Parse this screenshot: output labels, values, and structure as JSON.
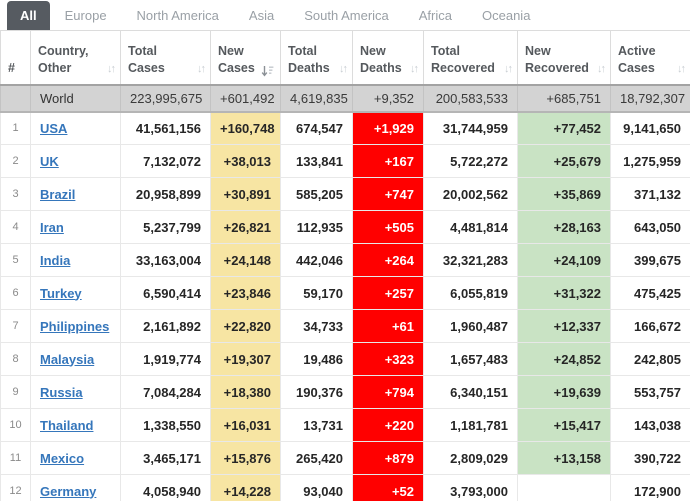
{
  "tabs": [
    {
      "label": "All",
      "active": true
    },
    {
      "label": "Europe",
      "active": false
    },
    {
      "label": "North America",
      "active": false
    },
    {
      "label": "Asia",
      "active": false
    },
    {
      "label": "South America",
      "active": false
    },
    {
      "label": "Africa",
      "active": false
    },
    {
      "label": "Oceania",
      "active": false
    }
  ],
  "colors": {
    "active_tab_bg": "#565b61",
    "new_cases_highlight": "#f7e5a3",
    "new_deaths_highlight": "#ff0000",
    "new_recovered_highlight": "#c9e3c4",
    "world_row_bg": "#d3d3d3",
    "country_link": "#3576bb"
  },
  "table": {
    "headers": [
      {
        "label": "#",
        "sortable": false
      },
      {
        "label": "Country, Other",
        "sortable": true
      },
      {
        "label": "Total Cases",
        "sortable": true
      },
      {
        "label": "New Cases",
        "sortable": true,
        "sorted": "desc"
      },
      {
        "label": "Total Deaths",
        "sortable": true
      },
      {
        "label": "New Deaths",
        "sortable": true
      },
      {
        "label": "Total Recovered",
        "sortable": true
      },
      {
        "label": "New Recovered",
        "sortable": true
      },
      {
        "label": "Active Cases",
        "sortable": true
      }
    ],
    "rows": [
      {
        "world": true,
        "num": "",
        "country": "World",
        "total_cases": "223,995,675",
        "new_cases": "+601,492",
        "total_deaths": "4,619,835",
        "new_deaths": "+9,352",
        "total_recovered": "200,583,533",
        "new_recovered": "+685,751",
        "active_cases": "18,792,307"
      },
      {
        "num": "1",
        "country": "USA",
        "total_cases": "41,561,156",
        "new_cases": "+160,748",
        "total_deaths": "674,547",
        "new_deaths": "+1,929",
        "total_recovered": "31,744,959",
        "new_recovered": "+77,452",
        "active_cases": "9,141,650"
      },
      {
        "num": "2",
        "country": "UK",
        "total_cases": "7,132,072",
        "new_cases": "+38,013",
        "total_deaths": "133,841",
        "new_deaths": "+167",
        "total_recovered": "5,722,272",
        "new_recovered": "+25,679",
        "active_cases": "1,275,959"
      },
      {
        "num": "3",
        "country": "Brazil",
        "total_cases": "20,958,899",
        "new_cases": "+30,891",
        "total_deaths": "585,205",
        "new_deaths": "+747",
        "total_recovered": "20,002,562",
        "new_recovered": "+35,869",
        "active_cases": "371,132"
      },
      {
        "num": "4",
        "country": "Iran",
        "total_cases": "5,237,799",
        "new_cases": "+26,821",
        "total_deaths": "112,935",
        "new_deaths": "+505",
        "total_recovered": "4,481,814",
        "new_recovered": "+28,163",
        "active_cases": "643,050"
      },
      {
        "num": "5",
        "country": "India",
        "total_cases": "33,163,004",
        "new_cases": "+24,148",
        "total_deaths": "442,046",
        "new_deaths": "+264",
        "total_recovered": "32,321,283",
        "new_recovered": "+24,109",
        "active_cases": "399,675"
      },
      {
        "num": "6",
        "country": "Turkey",
        "total_cases": "6,590,414",
        "new_cases": "+23,846",
        "total_deaths": "59,170",
        "new_deaths": "+257",
        "total_recovered": "6,055,819",
        "new_recovered": "+31,322",
        "active_cases": "475,425"
      },
      {
        "num": "7",
        "country": "Philippines",
        "total_cases": "2,161,892",
        "new_cases": "+22,820",
        "total_deaths": "34,733",
        "new_deaths": "+61",
        "total_recovered": "1,960,487",
        "new_recovered": "+12,337",
        "active_cases": "166,672"
      },
      {
        "num": "8",
        "country": "Malaysia",
        "total_cases": "1,919,774",
        "new_cases": "+19,307",
        "total_deaths": "19,486",
        "new_deaths": "+323",
        "total_recovered": "1,657,483",
        "new_recovered": "+24,852",
        "active_cases": "242,805"
      },
      {
        "num": "9",
        "country": "Russia",
        "total_cases": "7,084,284",
        "new_cases": "+18,380",
        "total_deaths": "190,376",
        "new_deaths": "+794",
        "total_recovered": "6,340,151",
        "new_recovered": "+19,639",
        "active_cases": "553,757"
      },
      {
        "num": "10",
        "country": "Thailand",
        "total_cases": "1,338,550",
        "new_cases": "+16,031",
        "total_deaths": "13,731",
        "new_deaths": "+220",
        "total_recovered": "1,181,781",
        "new_recovered": "+15,417",
        "active_cases": "143,038"
      },
      {
        "num": "11",
        "country": "Mexico",
        "total_cases": "3,465,171",
        "new_cases": "+15,876",
        "total_deaths": "265,420",
        "new_deaths": "+879",
        "total_recovered": "2,809,029",
        "new_recovered": "+13,158",
        "active_cases": "390,722"
      },
      {
        "num": "12",
        "country": "Germany",
        "total_cases": "4,058,940",
        "new_cases": "+14,228",
        "total_deaths": "93,040",
        "new_deaths": "+52",
        "total_recovered": "3,793,000",
        "new_recovered": "",
        "active_cases": "172,900"
      }
    ]
  }
}
